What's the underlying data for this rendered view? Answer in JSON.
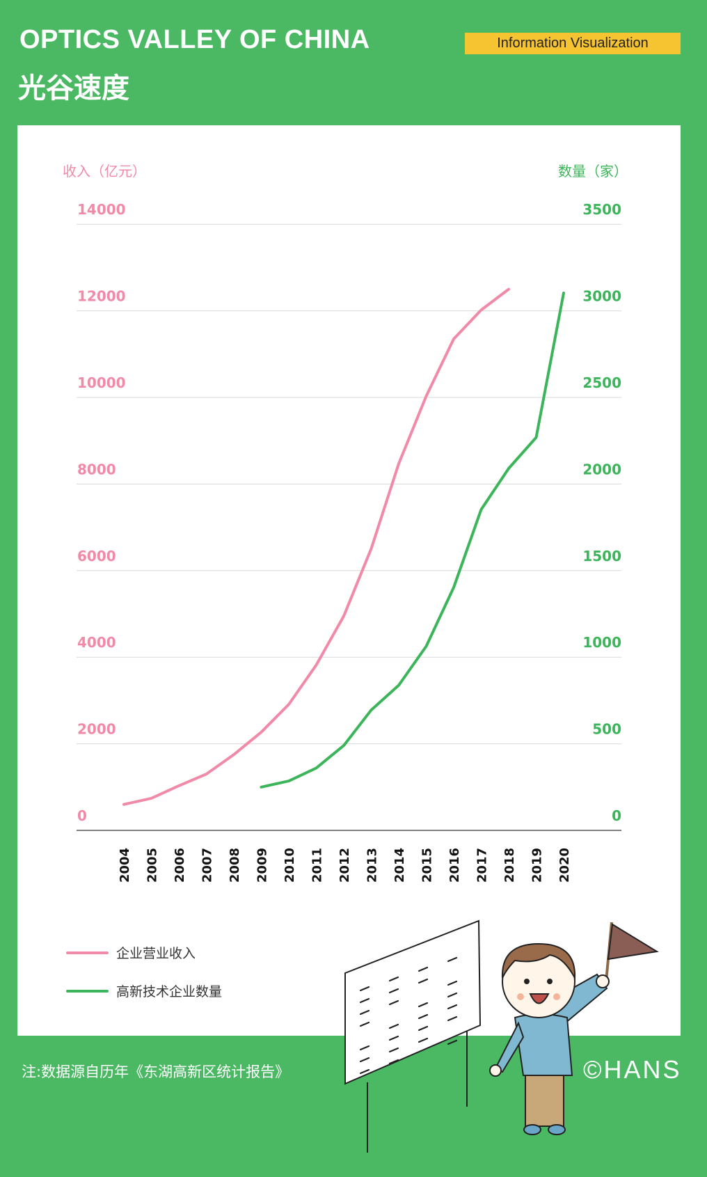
{
  "header": {
    "title_en": "OPTICS VALLEY OF CHINA",
    "title_cn": "光谷速度",
    "badge": "Information Visualization"
  },
  "colors": {
    "background": "#4bb963",
    "badge": "#f6c431",
    "revenue": "#f08aa8",
    "count": "#3cb55a"
  },
  "chart_data": {
    "type": "line",
    "title": "",
    "x": [
      2004,
      2005,
      2006,
      2007,
      2008,
      2009,
      2010,
      2011,
      2012,
      2013,
      2014,
      2015,
      2016,
      2017,
      2018,
      2019,
      2020
    ],
    "y_left_label": "收入（亿元）",
    "y_right_label": "数量（家）",
    "y_left_ticks": [
      "0",
      "2000",
      "4000",
      "6000",
      "8000",
      "10000",
      "12000",
      "14000"
    ],
    "y_right_ticks": [
      "0",
      "500",
      "1000",
      "1500",
      "2000",
      "2500",
      "3000",
      "3500"
    ],
    "y_left_range": [
      0,
      14000
    ],
    "y_right_range": [
      0,
      3500
    ],
    "grid": true,
    "legend_placement": "bottom-left",
    "series": [
      {
        "name": "企业营业收入",
        "axis": "left",
        "color": "#f08aa8",
        "x": [
          2004,
          2005,
          2006,
          2007,
          2008,
          2009,
          2010,
          2011,
          2012,
          2013,
          2014,
          2015,
          2016,
          2017,
          2018
        ],
        "values": [
          600,
          740,
          1030,
          1300,
          1750,
          2270,
          2910,
          3820,
          4950,
          6510,
          8470,
          10030,
          11350,
          12020,
          12500
        ]
      },
      {
        "name": "高新技术企业数量",
        "axis": "right",
        "color": "#3cb55a",
        "x": [
          2009,
          2010,
          2011,
          2012,
          2013,
          2014,
          2015,
          2016,
          2017,
          2018,
          2019,
          2020
        ],
        "values": [
          250,
          285,
          360,
          490,
          695,
          838,
          1063,
          1403,
          1853,
          2090,
          2269,
          3103
        ]
      }
    ]
  },
  "footer": {
    "note": "注:数据源自历年《东湖高新区统计报告》",
    "copyright": "©HANS"
  }
}
